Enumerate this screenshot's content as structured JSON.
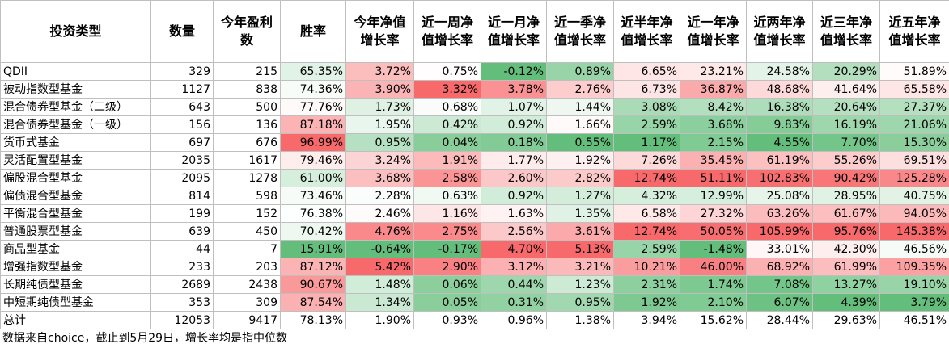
{
  "table": {
    "headers": [
      "投资类型",
      "数量",
      "今年盈利数",
      "胜率",
      "今年净值增长率",
      "近一周净值增长率",
      "近一月净值增长率",
      "近一季净值增长率",
      "近半年净值增长率",
      "近一年净值增长率",
      "近两年净值增长率",
      "近三年净值增长率",
      "近五年净值增长率"
    ],
    "rows": [
      {
        "name": "QDII",
        "count": "329",
        "profit": "215",
        "cells": [
          "65.35%",
          "3.72%",
          "0.75%",
          "-0.12%",
          "0.89%",
          "6.65%",
          "23.21%",
          "24.58%",
          "20.29%",
          "51.89%"
        ]
      },
      {
        "name": "被动指数型基金",
        "count": "1127",
        "profit": "838",
        "cells": [
          "74.36%",
          "3.90%",
          "3.32%",
          "3.78%",
          "2.76%",
          "6.73%",
          "36.87%",
          "48.68%",
          "41.64%",
          "65.58%"
        ]
      },
      {
        "name": "混合债券型基金（二级）",
        "count": "643",
        "profit": "500",
        "cells": [
          "77.76%",
          "1.73%",
          "0.68%",
          "1.07%",
          "1.44%",
          "3.08%",
          "8.42%",
          "16.38%",
          "20.64%",
          "27.37%"
        ]
      },
      {
        "name": "混合债券型基金（一级）",
        "count": "156",
        "profit": "136",
        "cells": [
          "87.18%",
          "1.95%",
          "0.42%",
          "0.92%",
          "1.66%",
          "2.59%",
          "3.68%",
          "9.83%",
          "16.19%",
          "21.06%"
        ]
      },
      {
        "name": "货币式基金",
        "count": "697",
        "profit": "676",
        "cells": [
          "96.99%",
          "0.95%",
          "0.04%",
          "0.18%",
          "0.55%",
          "1.17%",
          "2.15%",
          "4.55%",
          "7.70%",
          "15.30%"
        ]
      },
      {
        "name": "灵活配置型基金",
        "count": "2035",
        "profit": "1617",
        "cells": [
          "79.46%",
          "3.24%",
          "1.91%",
          "1.77%",
          "1.92%",
          "7.26%",
          "35.45%",
          "61.19%",
          "55.26%",
          "69.51%"
        ]
      },
      {
        "name": "偏股混合型基金",
        "count": "2095",
        "profit": "1278",
        "cells": [
          "61.00%",
          "3.68%",
          "2.58%",
          "2.60%",
          "2.82%",
          "12.74%",
          "51.11%",
          "102.83%",
          "90.42%",
          "125.28%"
        ]
      },
      {
        "name": "偏债混合型基金",
        "count": "814",
        "profit": "598",
        "cells": [
          "73.46%",
          "2.28%",
          "0.63%",
          "0.92%",
          "1.27%",
          "4.32%",
          "12.99%",
          "25.08%",
          "28.95%",
          "40.75%"
        ]
      },
      {
        "name": "平衡混合型基金",
        "count": "199",
        "profit": "152",
        "cells": [
          "76.38%",
          "2.46%",
          "1.16%",
          "1.63%",
          "1.35%",
          "6.58%",
          "27.32%",
          "63.26%",
          "61.67%",
          "94.05%"
        ]
      },
      {
        "name": "普通股票型基金",
        "count": "639",
        "profit": "450",
        "cells": [
          "70.42%",
          "4.76%",
          "2.75%",
          "2.56%",
          "3.61%",
          "12.74%",
          "50.05%",
          "105.99%",
          "95.76%",
          "145.38%"
        ]
      },
      {
        "name": "商品型基金",
        "count": "44",
        "profit": "7",
        "cells": [
          "15.91%",
          "-0.64%",
          "-0.17%",
          "4.70%",
          "5.13%",
          "2.59%",
          "-1.48%",
          "33.01%",
          "42.30%",
          "46.56%"
        ]
      },
      {
        "name": "增强指数型基金",
        "count": "233",
        "profit": "203",
        "cells": [
          "87.12%",
          "5.42%",
          "2.90%",
          "3.12%",
          "3.21%",
          "10.21%",
          "46.00%",
          "68.92%",
          "61.99%",
          "109.35%"
        ]
      },
      {
        "name": "长期纯债型基金",
        "count": "2689",
        "profit": "2438",
        "cells": [
          "90.67%",
          "1.48%",
          "0.06%",
          "0.44%",
          "1.23%",
          "2.31%",
          "1.74%",
          "7.08%",
          "13.27%",
          "19.10%"
        ]
      },
      {
        "name": "中短期纯债型基金",
        "count": "353",
        "profit": "309",
        "cells": [
          "87.54%",
          "1.34%",
          "0.05%",
          "0.31%",
          "0.95%",
          "1.92%",
          "2.10%",
          "6.07%",
          "4.39%",
          "3.79%"
        ]
      },
      {
        "name": "总计",
        "count": "12053",
        "profit": "9417",
        "cells": [
          "78.13%",
          "1.90%",
          "0.93%",
          "0.96%",
          "1.38%",
          "3.94%",
          "15.62%",
          "28.44%",
          "29.63%",
          "46.51%"
        ]
      }
    ]
  },
  "colors": {
    "high": "#f8696b",
    "mid": "#ffffff",
    "low": "#63be7b",
    "border": "#bfbfbf"
  },
  "footnote": "数据来自choice，截止到5月29日，增长率均是指中位数"
}
